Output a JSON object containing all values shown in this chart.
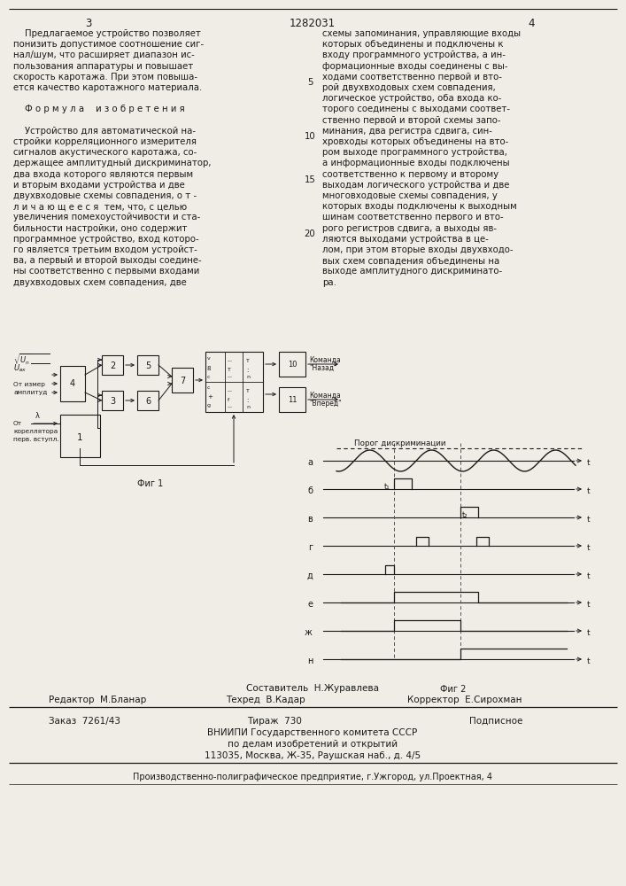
{
  "page_width": 7.07,
  "page_height": 10.0,
  "bg_color": "#f0ede6",
  "text_color": "#1a1a1a",
  "patent_number": "1282031",
  "page_left": "3",
  "page_right": "4",
  "col1_text": [
    "    Предлагаемое устройство позволяет",
    "понизить допустимое соотношение сиг-",
    "нал/шум, что расширяет диапазон ис-",
    "пользования аппаратуры и повышает",
    "скорость каротажа. При этом повыша-",
    "ется качество каротажного материала.",
    "",
    "    Ф о р м у л а    и з о б р е т е н и я",
    "",
    "    Устройство для автоматической на-",
    "стройки корреляционного измерителя",
    "сигналов акустического каротажа, со-",
    "держащее амплитудный дискриминатор,",
    "два входа которого являются первым",
    "и вторым входами устройства и две",
    "двухвходовые схемы совпадения, о т -",
    "л и ч а ю щ е е с я  тем, что, с целью",
    "увеличения помехоустойчивости и ста-",
    "бильности настройки, оно содержит",
    "программное устройство, вход которо-",
    "го является третьим входом устройст-",
    "ва, а первый и второй выходы соедине-",
    "ны соответственно с первыми входами",
    "двухвходовых схем совпадения, две"
  ],
  "col2_text": [
    "схемы запоминания, управляющие входы",
    "которых объединены и подключены к",
    "входу программного устройства, а ин-",
    "формационные входы соединены с вы-",
    "ходами соответственно первой и вто-",
    "рой двухвходовых схем совпадения,",
    "логическое устройство, оба входа ко-",
    "торого соединены с выходами соответ-",
    "ственно первой и второй схемы запо-",
    "минания, два регистра сдвига, син-",
    "хровходы которых объединены на вто-",
    "ром выходе программного устройства,",
    "а информационные входы подключены",
    "соответственно к первому и второму",
    "выходам логического устройства и две",
    "многовходовые схемы совпадения, у",
    "которых входы подключены к выходным",
    "шинам соответственно первого и вто-",
    "рого регистров сдвига, а выходы яв-",
    "ляются выходами устройства в це-",
    "лом, при этом вторые входы двухвходо-",
    "вых схем совпадения объединены на",
    "выходе амплитудного дискриминато-",
    "ра."
  ],
  "footer_composer": "Составитель  Н.Журавлева",
  "footer_editor": "Редактор  М.Бланар",
  "footer_techred": "Техред  В.Кадар",
  "footer_corrector": "Корректор  Е.Сирохман",
  "footer_order": "Заказ  7261/43",
  "footer_tirazh": "Тираж  730",
  "footer_podpisnoe": "Подписное",
  "footer_vniipи": "ВНИИПИ Государственного комитета СССР",
  "footer_po": "по делам изобретений и открытий",
  "footer_address": "113035, Москва, Ж-35, Раушская наб., д. 4/5",
  "footer_enterprise": "Производственно-полиграфическое предприятие, г.Ужгород, ул.Проектная, 4"
}
